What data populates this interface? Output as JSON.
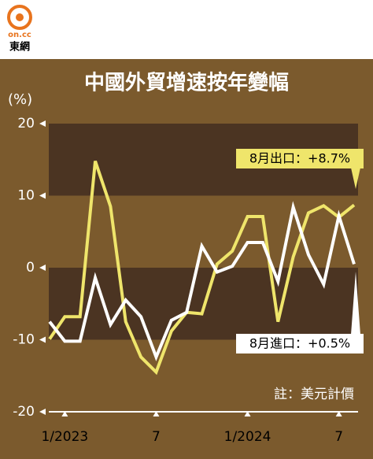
{
  "header": {
    "logo": "on.cc",
    "brand": "東網"
  },
  "chart_data": {
    "type": "line",
    "title": "中國外貿增速按年變幅",
    "y_label": "(%)",
    "categories": [
      null,
      "1/2023",
      null,
      null,
      null,
      null,
      null,
      "7",
      null,
      null,
      null,
      null,
      null,
      "1/2024",
      null,
      null,
      null,
      null,
      null,
      "7",
      null
    ],
    "series": [
      {
        "name": "出口",
        "color": "#efe56b",
        "values": [
          -9.9,
          -6.8,
          -6.8,
          14.8,
          8.5,
          -7.5,
          -12.4,
          -14.5,
          -8.8,
          -6.2,
          -6.4,
          0.5,
          2.3,
          7.1,
          7.1,
          -7.5,
          1.5,
          7.6,
          8.6,
          7.0,
          8.7
        ]
      },
      {
        "name": "進口",
        "color": "#ffffff",
        "values": [
          -7.5,
          -10.2,
          -10.2,
          -1.4,
          -7.9,
          -4.5,
          -6.8,
          -12.4,
          -7.3,
          -6.2,
          3.0,
          -0.6,
          0.2,
          3.5,
          3.5,
          -1.9,
          8.4,
          1.8,
          -2.3,
          7.2,
          0.5
        ]
      }
    ],
    "ylim": [
      -20,
      20
    ],
    "yticks": [
      -20,
      -10,
      0,
      10,
      20
    ],
    "grid": true,
    "annotations": [
      "8月出口：+8.7%",
      "8月進口：+0.5%",
      "註：美元計價"
    ]
  }
}
